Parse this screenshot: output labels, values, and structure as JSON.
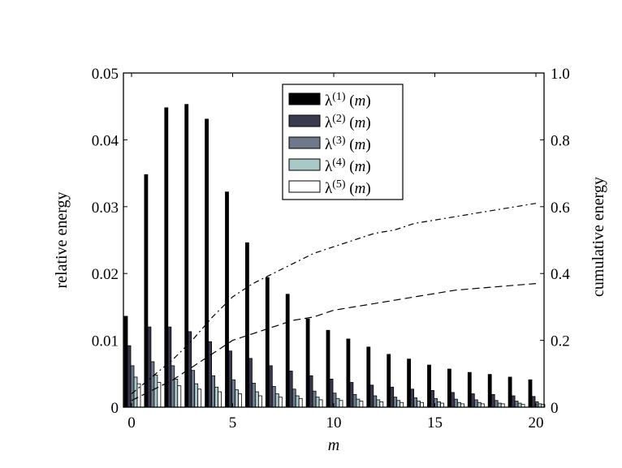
{
  "chart_data": {
    "type": "bar",
    "title": "",
    "xlabel": "m",
    "ylabel": "relative energy",
    "ylabel_right": "cumulative energy",
    "xlim": [
      -0.4,
      20.4
    ],
    "ylim": [
      0,
      0.05
    ],
    "ylim_right": [
      0,
      1.0
    ],
    "x": [
      0,
      1,
      2,
      3,
      4,
      5,
      6,
      7,
      8,
      9,
      10,
      11,
      12,
      13,
      14,
      15,
      16,
      17,
      18,
      19,
      20
    ],
    "xticks": [
      "0",
      "5",
      "10",
      "15",
      "20"
    ],
    "yticks": [
      "0",
      "0.01",
      "0.02",
      "0.03",
      "0.04",
      "0.05"
    ],
    "yticks_right": [
      "0",
      "0.2",
      "0.4",
      "0.6",
      "0.8",
      "1.0"
    ],
    "legend_placement": "top-center",
    "series": [
      {
        "name": "λ(1) (m)",
        "sup": "(1)",
        "color": "#000000",
        "values": [
          0.0136,
          0.0348,
          0.0448,
          0.0453,
          0.0431,
          0.0322,
          0.0246,
          0.0194,
          0.0169,
          0.0132,
          0.0115,
          0.0102,
          0.009,
          0.0079,
          0.0072,
          0.0063,
          0.0057,
          0.0052,
          0.0049,
          0.0045,
          0.0041
        ]
      },
      {
        "name": "λ(2) (m)",
        "sup": "(2)",
        "color": "#3a3a4e",
        "values": [
          0.0092,
          0.012,
          0.012,
          0.0113,
          0.0098,
          0.0084,
          0.0073,
          0.0062,
          0.0054,
          0.0047,
          0.0042,
          0.0037,
          0.0033,
          0.003,
          0.0027,
          0.0025,
          0.0022,
          0.002,
          0.0019,
          0.0017,
          0.0016
        ]
      },
      {
        "name": "λ(3) (m)",
        "sup": "(3)",
        "color": "#6e7a8c",
        "values": [
          0.0062,
          0.0068,
          0.0062,
          0.0055,
          0.0047,
          0.0041,
          0.0036,
          0.0031,
          0.0027,
          0.0024,
          0.0021,
          0.0019,
          0.0017,
          0.0015,
          0.0014,
          0.0013,
          0.0012,
          0.0011,
          0.001,
          0.0009,
          0.0008
        ]
      },
      {
        "name": "λ(4) (m)",
        "sup": "(4)",
        "color": "#aac8c6",
        "values": [
          0.0045,
          0.0048,
          0.0042,
          0.0035,
          0.003,
          0.0026,
          0.0023,
          0.002,
          0.0017,
          0.0015,
          0.0013,
          0.0012,
          0.0011,
          0.001,
          0.0009,
          0.0008,
          0.0007,
          0.0007,
          0.0006,
          0.0006,
          0.0005
        ]
      },
      {
        "name": "λ(5) (m)",
        "sup": "(5)",
        "color": "#ffffff",
        "values": [
          0.0035,
          0.0037,
          0.0032,
          0.0027,
          0.0023,
          0.002,
          0.0017,
          0.0015,
          0.0013,
          0.0011,
          0.001,
          0.0009,
          0.0008,
          0.0007,
          0.0007,
          0.0006,
          0.0005,
          0.0005,
          0.0005,
          0.0004,
          0.0004
        ]
      }
    ],
    "lines": [
      {
        "name": "cumulative energy (dash-dot)",
        "style": "dash-dot",
        "axis": "right",
        "values": [
          0.04,
          0.09,
          0.14,
          0.2,
          0.27,
          0.33,
          0.37,
          0.4,
          0.43,
          0.46,
          0.48,
          0.5,
          0.52,
          0.53,
          0.55,
          0.56,
          0.57,
          0.58,
          0.59,
          0.6,
          0.61
        ]
      },
      {
        "name": "cumulative energy (dashed)",
        "style": "dashed",
        "axis": "right",
        "values": [
          0.02,
          0.05,
          0.08,
          0.12,
          0.16,
          0.2,
          0.22,
          0.24,
          0.26,
          0.27,
          0.29,
          0.3,
          0.31,
          0.32,
          0.33,
          0.34,
          0.35,
          0.355,
          0.36,
          0.365,
          0.37
        ]
      }
    ]
  }
}
